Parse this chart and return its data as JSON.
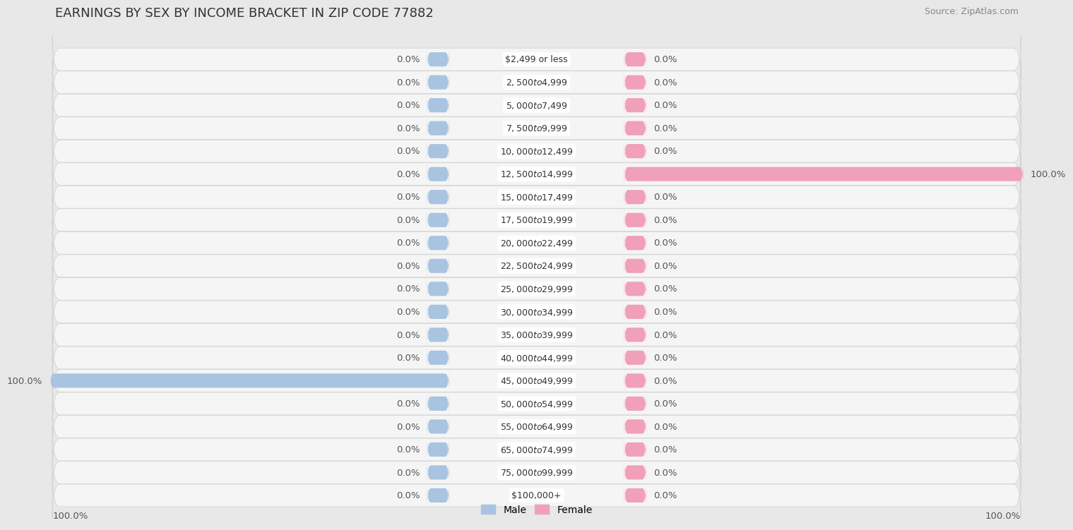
{
  "title": "EARNINGS BY SEX BY INCOME BRACKET IN ZIP CODE 77882",
  "source": "Source: ZipAtlas.com",
  "categories": [
    "$2,499 or less",
    "$2,500 to $4,999",
    "$5,000 to $7,499",
    "$7,500 to $9,999",
    "$10,000 to $12,499",
    "$12,500 to $14,999",
    "$15,000 to $17,499",
    "$17,500 to $19,999",
    "$20,000 to $22,499",
    "$22,500 to $24,999",
    "$25,000 to $29,999",
    "$30,000 to $34,999",
    "$35,000 to $39,999",
    "$40,000 to $44,999",
    "$45,000 to $49,999",
    "$50,000 to $54,999",
    "$55,000 to $64,999",
    "$65,000 to $74,999",
    "$75,000 to $99,999",
    "$100,000+"
  ],
  "male_values": [
    0.0,
    0.0,
    0.0,
    0.0,
    0.0,
    0.0,
    0.0,
    0.0,
    0.0,
    0.0,
    0.0,
    0.0,
    0.0,
    0.0,
    100.0,
    0.0,
    0.0,
    0.0,
    0.0,
    0.0
  ],
  "female_values": [
    0.0,
    0.0,
    0.0,
    0.0,
    0.0,
    100.0,
    0.0,
    0.0,
    0.0,
    0.0,
    0.0,
    0.0,
    0.0,
    0.0,
    0.0,
    0.0,
    0.0,
    0.0,
    0.0,
    0.0
  ],
  "male_color": "#a8c4e0",
  "female_color": "#f0a0b8",
  "bg_color": "#e8e8e8",
  "row_bg_color": "#f5f5f5",
  "row_border_color": "#d0d0d0",
  "title_color": "#333333",
  "source_color": "#888888",
  "label_color": "#555555",
  "label_value_color_on_bar": "#555555",
  "title_fontsize": 13,
  "label_fontsize": 9.5,
  "category_fontsize": 9,
  "source_fontsize": 9
}
